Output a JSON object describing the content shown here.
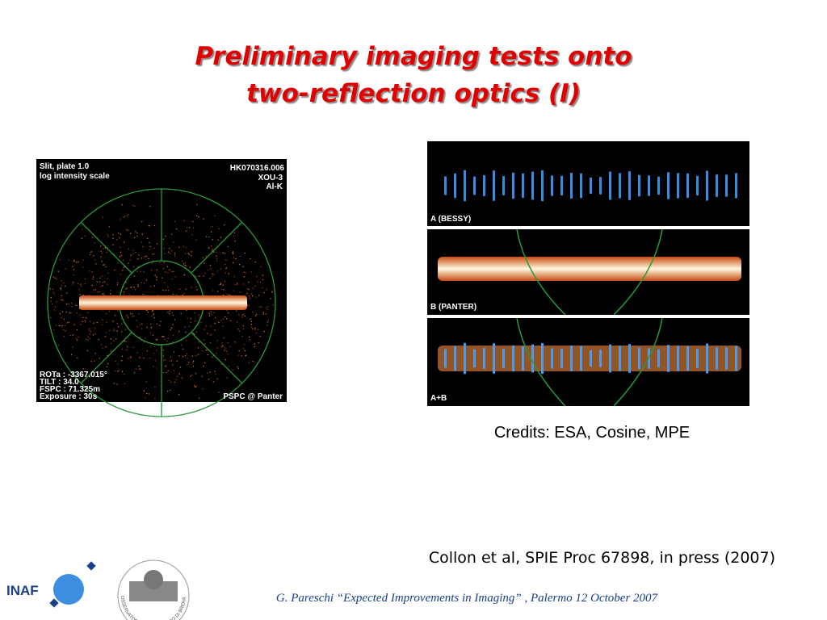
{
  "header": {
    "title_lines": [
      "Preliminary imaging tests onto",
      "two-reflection optics (I)"
    ]
  },
  "left_image": {
    "top_left": [
      "Slit, plate 1.0",
      "log intensity scale"
    ],
    "top_right": [
      "HK070316.006",
      "XOU-3",
      "Al-K"
    ],
    "bottom_left": [
      "ROTa : -3367.015°",
      "TILT : 34.0",
      "FSPC : 71.325m",
      "Exposure : 30s"
    ],
    "bottom_right": "PSPC @ Panter"
  },
  "right_image": {
    "panels": [
      "A (BESSY)",
      "B (PANTER)",
      "A+B"
    ]
  },
  "credits": "Credits: ESA, Cosine, MPE",
  "citation": "Collon et al, SPIE Proc 67898, in press (2007)",
  "footer": {
    "logo": "INAF",
    "observatory": "OSSERVATORIO ASTRONOMICO DI BRERA",
    "text": "G. Pareschi “Expected Improvements in Imaging” , Palermo 12 October 2007"
  }
}
